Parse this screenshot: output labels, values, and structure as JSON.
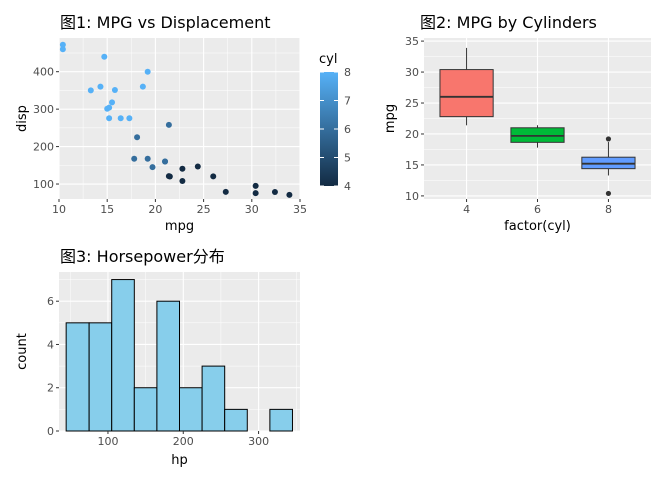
{
  "chart_data": [
    {
      "type": "scatter",
      "title": "图1: MPG vs Displacement",
      "xlabel": "mpg",
      "ylabel": "disp",
      "xlim": [
        10,
        35
      ],
      "ylim": [
        60,
        490
      ],
      "xticks": [
        10,
        15,
        20,
        25,
        30,
        35
      ],
      "yticks": [
        100,
        200,
        300,
        400
      ],
      "color_legend": {
        "title": "cyl",
        "min": 4,
        "max": 8,
        "ticks": [
          4,
          5,
          6,
          7,
          8
        ],
        "low_color": "#132B43",
        "high_color": "#56B1F7"
      },
      "points": [
        {
          "x": 21.0,
          "y": 160,
          "cyl": 6
        },
        {
          "x": 21.0,
          "y": 160,
          "cyl": 6
        },
        {
          "x": 22.8,
          "y": 108,
          "cyl": 4
        },
        {
          "x": 21.4,
          "y": 258,
          "cyl": 6
        },
        {
          "x": 18.7,
          "y": 360,
          "cyl": 8
        },
        {
          "x": 18.1,
          "y": 225,
          "cyl": 6
        },
        {
          "x": 14.3,
          "y": 360,
          "cyl": 8
        },
        {
          "x": 24.4,
          "y": 146.7,
          "cyl": 4
        },
        {
          "x": 22.8,
          "y": 140.8,
          "cyl": 4
        },
        {
          "x": 19.2,
          "y": 167.6,
          "cyl": 6
        },
        {
          "x": 17.8,
          "y": 167.6,
          "cyl": 6
        },
        {
          "x": 16.4,
          "y": 275.8,
          "cyl": 8
        },
        {
          "x": 17.3,
          "y": 275.8,
          "cyl": 8
        },
        {
          "x": 15.2,
          "y": 275.8,
          "cyl": 8
        },
        {
          "x": 10.4,
          "y": 472,
          "cyl": 8
        },
        {
          "x": 10.4,
          "y": 460,
          "cyl": 8
        },
        {
          "x": 14.7,
          "y": 440,
          "cyl": 8
        },
        {
          "x": 32.4,
          "y": 78.7,
          "cyl": 4
        },
        {
          "x": 30.4,
          "y": 75.7,
          "cyl": 4
        },
        {
          "x": 33.9,
          "y": 71.1,
          "cyl": 4
        },
        {
          "x": 21.5,
          "y": 120.1,
          "cyl": 4
        },
        {
          "x": 15.5,
          "y": 318,
          "cyl": 8
        },
        {
          "x": 15.2,
          "y": 304,
          "cyl": 8
        },
        {
          "x": 13.3,
          "y": 350,
          "cyl": 8
        },
        {
          "x": 19.2,
          "y": 400,
          "cyl": 8
        },
        {
          "x": 27.3,
          "y": 79,
          "cyl": 4
        },
        {
          "x": 26.0,
          "y": 120.3,
          "cyl": 4
        },
        {
          "x": 30.4,
          "y": 95.1,
          "cyl": 4
        },
        {
          "x": 15.8,
          "y": 351,
          "cyl": 8
        },
        {
          "x": 19.7,
          "y": 145,
          "cyl": 6
        },
        {
          "x": 15.0,
          "y": 301,
          "cyl": 8
        },
        {
          "x": 21.4,
          "y": 121,
          "cyl": 4
        }
      ]
    },
    {
      "type": "boxplot",
      "title": "图2: MPG by Cylinders",
      "xlabel": "factor(cyl)",
      "ylabel": "mpg",
      "ylim": [
        9.5,
        35.5
      ],
      "yticks": [
        10,
        15,
        20,
        25,
        30,
        35
      ],
      "groups": [
        {
          "label": "4",
          "color": "#F8766D",
          "min": 21.4,
          "q1": 22.8,
          "median": 26.0,
          "q3": 30.4,
          "max": 33.9,
          "outliers": []
        },
        {
          "label": "6",
          "color": "#00BA38",
          "min": 17.8,
          "q1": 18.65,
          "median": 19.7,
          "q3": 21.0,
          "max": 21.4,
          "outliers": []
        },
        {
          "label": "8",
          "color": "#619CFF",
          "min": 13.3,
          "q1": 14.4,
          "median": 15.2,
          "q3": 16.25,
          "max": 18.7,
          "outliers": [
            10.4,
            19.2
          ]
        }
      ]
    },
    {
      "type": "histogram",
      "title": "图3: Horsepower分布",
      "xlabel": "hp",
      "ylabel": "count",
      "xlim": [
        35,
        355
      ],
      "ylim": [
        0,
        7.35
      ],
      "xticks": [
        100,
        200,
        300
      ],
      "yticks": [
        0,
        2,
        4,
        6
      ],
      "fill": "#87CEEB",
      "bins": [
        {
          "x0": 44.5,
          "x1": 75,
          "count": 5
        },
        {
          "x0": 75,
          "x1": 105,
          "count": 5
        },
        {
          "x0": 105,
          "x1": 135,
          "count": 7
        },
        {
          "x0": 135,
          "x1": 165,
          "count": 2
        },
        {
          "x0": 165,
          "x1": 195,
          "count": 6
        },
        {
          "x0": 195,
          "x1": 225,
          "count": 2
        },
        {
          "x0": 225,
          "x1": 255,
          "count": 3
        },
        {
          "x0": 255,
          "x1": 285,
          "count": 1
        },
        {
          "x0": 285,
          "x1": 315,
          "count": 0
        },
        {
          "x0": 315,
          "x1": 345,
          "count": 1
        }
      ]
    }
  ]
}
